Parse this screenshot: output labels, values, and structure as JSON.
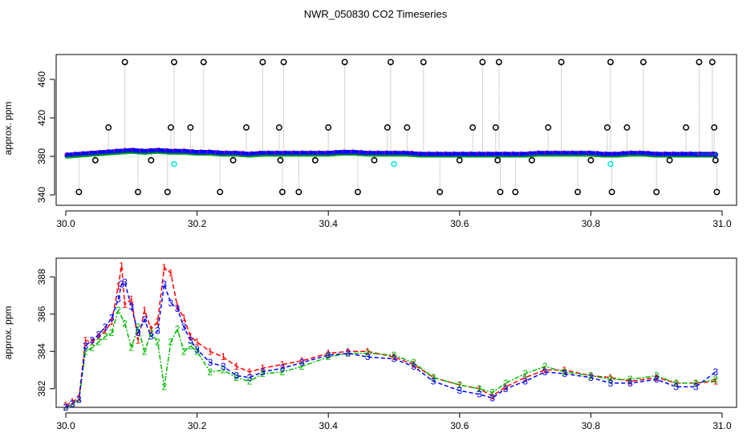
{
  "title": "NWR_050830  CO2 Timeseries",
  "colors": {
    "marker": "#000000",
    "drop_line": "#909090",
    "series1": "#ff0000",
    "series2": "#00bb00",
    "series3": "#0000ff",
    "cyan": "#00e5ee",
    "purple": "#aa00aa"
  },
  "chart_data": [
    {
      "type": "scatter",
      "ylabel": "approx. ppm",
      "xlabel": "",
      "xlim": [
        30.0,
        31.0
      ],
      "ylim": [
        340,
        480
      ],
      "xticks": [
        30.0,
        30.2,
        30.4,
        30.6,
        30.8,
        31.0
      ],
      "xtick_labels": [
        "30.0",
        "30.2",
        "30.4",
        "30.6",
        "30.8",
        "31.0"
      ],
      "yticks": [
        340,
        380,
        420,
        460
      ],
      "ytick_labels": [
        "340",
        "380",
        "420",
        "460"
      ],
      "grid": false,
      "base_series": {
        "x": [
          30.002,
          30.02,
          30.04,
          30.06,
          30.08,
          30.1,
          30.12,
          30.14,
          30.16,
          30.18,
          30.2,
          30.22,
          30.24,
          30.26,
          30.28,
          30.3,
          30.32,
          30.34,
          30.36,
          30.38,
          30.4,
          30.42,
          30.44,
          30.46,
          30.48,
          30.5,
          30.52,
          30.54,
          30.56,
          30.58,
          30.6,
          30.62,
          30.64,
          30.66,
          30.68,
          30.7,
          30.72,
          30.74,
          30.76,
          30.78,
          30.8,
          30.82,
          30.84,
          30.86,
          30.88,
          30.9,
          30.92,
          30.94,
          30.96,
          30.99
        ],
        "y": [
          381,
          382,
          383,
          384,
          385,
          386,
          385,
          386,
          385,
          385,
          384,
          384,
          383,
          383,
          382,
          383,
          383,
          383,
          383,
          383,
          383,
          384,
          384,
          383,
          383,
          383,
          383,
          382,
          382,
          382,
          382,
          382,
          382,
          382,
          382,
          382,
          383,
          383,
          383,
          383,
          383,
          382,
          382,
          383,
          383,
          382,
          382,
          382,
          382,
          382
        ]
      },
      "outliers": {
        "x": [
          30.02,
          30.045,
          30.065,
          30.09,
          30.11,
          30.13,
          30.155,
          30.16,
          30.165,
          30.19,
          30.21,
          30.235,
          30.255,
          30.275,
          30.3,
          30.325,
          30.327,
          30.33,
          30.332,
          30.355,
          30.38,
          30.4,
          30.425,
          30.445,
          30.47,
          30.49,
          30.495,
          30.52,
          30.545,
          30.57,
          30.6,
          30.62,
          30.635,
          30.655,
          30.658,
          30.66,
          30.662,
          30.685,
          30.71,
          30.735,
          30.755,
          30.78,
          30.8,
          30.825,
          30.83,
          30.832,
          30.855,
          30.88,
          30.9,
          30.92,
          30.945,
          30.965,
          30.985,
          30.988,
          30.99,
          30.992
        ],
        "y": [
          343,
          376,
          410,
          478,
          343,
          376,
          343,
          410,
          478,
          410,
          478,
          343,
          376,
          410,
          478,
          410,
          376,
          343,
          478,
          343,
          376,
          410,
          478,
          343,
          376,
          410,
          478,
          410,
          478,
          343,
          376,
          410,
          478,
          410,
          376,
          478,
          343,
          343,
          376,
          410,
          478,
          343,
          376,
          410,
          478,
          343,
          410,
          478,
          343,
          376,
          410,
          478,
          478,
          410,
          376,
          343
        ]
      },
      "cyan_points": {
        "x": [
          30.165,
          30.5,
          30.83
        ],
        "y": [
          372,
          372,
          372
        ]
      }
    },
    {
      "type": "line",
      "ylabel": "approx. ppm",
      "xlabel": "",
      "xlim": [
        30.0,
        31.0
      ],
      "ylim": [
        381.0,
        389.0
      ],
      "xticks": [
        30.0,
        30.2,
        30.4,
        30.6,
        30.8,
        31.0
      ],
      "xtick_labels": [
        "30.0",
        "30.2",
        "30.4",
        "30.6",
        "30.8",
        "31.0"
      ],
      "yticks": [
        382,
        384,
        386,
        388
      ],
      "ytick_labels": [
        "382",
        "384",
        "386",
        "388"
      ],
      "grid": false,
      "series": [
        {
          "marker": "1",
          "x": [
            30.0,
            30.01,
            30.02,
            30.03,
            30.04,
            30.05,
            30.06,
            30.07,
            30.08,
            30.085,
            30.09,
            30.1,
            30.11,
            30.12,
            30.13,
            30.14,
            30.15,
            30.16,
            30.17,
            30.18,
            30.19,
            30.2,
            30.22,
            30.24,
            30.26,
            30.28,
            30.3,
            30.33,
            30.36,
            30.4,
            30.43,
            30.46,
            30.5,
            30.53,
            30.56,
            30.6,
            30.63,
            30.65,
            30.67,
            30.7,
            30.73,
            30.76,
            30.8,
            30.83,
            30.86,
            30.9,
            30.93,
            30.96,
            30.99
          ],
          "y": [
            381.1,
            381.3,
            381.5,
            384.6,
            384.5,
            384.8,
            385.1,
            385.6,
            387.5,
            388.6,
            386.5,
            386.8,
            384.6,
            386.2,
            385.2,
            385.6,
            388.5,
            388.2,
            386.4,
            385.8,
            384.8,
            384.5,
            384.0,
            383.7,
            383.2,
            382.9,
            383.1,
            383.3,
            383.5,
            383.9,
            384.0,
            384.0,
            383.7,
            383.3,
            382.6,
            382.2,
            382.0,
            381.6,
            382.1,
            382.6,
            383.0,
            383.0,
            382.7,
            382.6,
            382.4,
            382.6,
            382.3,
            382.3,
            382.4
          ]
        },
        {
          "marker": "2",
          "x": [
            30.0,
            30.01,
            30.02,
            30.03,
            30.04,
            30.05,
            30.06,
            30.07,
            30.08,
            30.09,
            30.1,
            30.11,
            30.12,
            30.13,
            30.14,
            30.15,
            30.16,
            30.17,
            30.18,
            30.19,
            30.2,
            30.22,
            30.24,
            30.26,
            30.28,
            30.3,
            30.33,
            30.36,
            30.4,
            30.43,
            30.46,
            30.5,
            30.53,
            30.56,
            30.6,
            30.63,
            30.65,
            30.67,
            30.7,
            30.73,
            30.76,
            30.8,
            30.83,
            30.86,
            30.9,
            30.93,
            30.96,
            30.99
          ],
          "y": [
            381.0,
            381.2,
            381.4,
            384.0,
            384.2,
            384.5,
            384.8,
            385.0,
            386.2,
            385.5,
            384.2,
            385.3,
            384.0,
            385.0,
            384.5,
            382.1,
            384.5,
            385.2,
            384.0,
            384.3,
            384.0,
            382.9,
            383.0,
            382.6,
            382.4,
            382.8,
            382.9,
            383.2,
            383.7,
            383.9,
            383.9,
            383.8,
            383.4,
            382.6,
            382.2,
            382.0,
            381.8,
            382.3,
            382.8,
            383.2,
            382.9,
            382.7,
            382.5,
            382.5,
            382.7,
            382.3,
            382.3,
            382.5
          ]
        },
        {
          "marker": "3",
          "x": [
            30.0,
            30.01,
            30.02,
            30.03,
            30.04,
            30.05,
            30.06,
            30.07,
            30.08,
            30.085,
            30.09,
            30.1,
            30.11,
            30.12,
            30.13,
            30.14,
            30.15,
            30.16,
            30.17,
            30.18,
            30.19,
            30.2,
            30.22,
            30.24,
            30.26,
            30.28,
            30.3,
            30.33,
            30.36,
            30.4,
            30.43,
            30.46,
            30.5,
            30.53,
            30.56,
            30.6,
            30.63,
            30.65,
            30.67,
            30.7,
            30.73,
            30.76,
            30.8,
            30.83,
            30.86,
            30.9,
            30.93,
            30.96,
            30.99
          ],
          "y": [
            381.0,
            381.2,
            381.4,
            384.3,
            384.6,
            384.9,
            385.3,
            385.8,
            386.8,
            387.6,
            387.7,
            386.4,
            385.0,
            385.7,
            384.8,
            385.1,
            387.6,
            386.6,
            386.3,
            385.3,
            384.6,
            384.1,
            383.4,
            383.2,
            382.7,
            382.6,
            382.9,
            383.1,
            383.4,
            383.8,
            383.9,
            383.7,
            383.6,
            383.2,
            382.4,
            381.9,
            381.7,
            381.5,
            382.0,
            382.4,
            382.9,
            382.8,
            382.6,
            382.3,
            382.3,
            382.5,
            382.1,
            382.1,
            382.9
          ]
        }
      ]
    }
  ]
}
